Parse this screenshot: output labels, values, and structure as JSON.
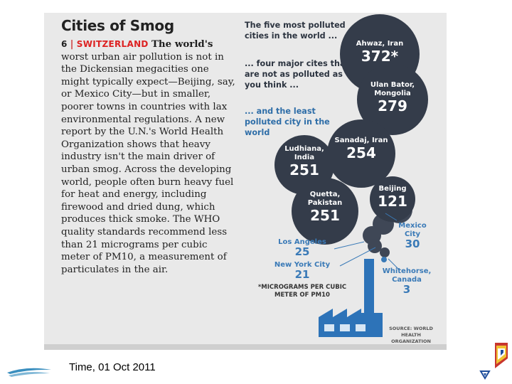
{
  "magazine": {
    "title": "Cities of Smog",
    "item_number": "6",
    "separator": "|",
    "country": "SWITZERLAND",
    "lead": "The world's",
    "body": "worst urban air pollution is not in the Dickensian megacities one might typically expect—Beijing, say, or Mexico City—but in smaller, poorer towns in countries with lax environmental regulations. A new report by the U.N.'s World Health Organization shows that heavy industry isn't the main driver of urban smog. Across the developing world, people often burn heavy fuel for heat and energy, including firewood and dried dung, which produces thick smoke. The WHO quality standards recommend less than 21 micrograms per cubic meter of PM10, a measurement of particulates in the air."
  },
  "legend": {
    "most_polluted": "The five most polluted cities in the world ...",
    "not_as_polluted": "... four major cites that are not as polluted as you think ...",
    "least_polluted": "... and the least polluted city in the world"
  },
  "cities": {
    "ahwaz": {
      "name": "Ahwaz, Iran",
      "value": "372*"
    },
    "ulan_bator": {
      "name": "Ulan Bator, Mongolia",
      "value": "279"
    },
    "sanandaj": {
      "name": "Sanadaj, Iran",
      "value": "254"
    },
    "ludhiana": {
      "name": "Ludhiana, India",
      "value": "251"
    },
    "quetta": {
      "name": "Quetta, Pakistan",
      "value": "251"
    },
    "beijing": {
      "name": "Beijing",
      "value": "121"
    },
    "mexico_city": {
      "name": "Mexico City",
      "value": "30"
    },
    "los_angeles": {
      "name": "Los Angeles",
      "value": "25"
    },
    "new_york": {
      "name": "New York City",
      "value": "21"
    },
    "whitehorse": {
      "name": "Whitehorse, Canada",
      "value": "3"
    }
  },
  "footnote": "*MICROGRAMS PER CUBIC METER OF PM10",
  "source": "SOURCE: WORLD HEALTH ORGANIZATION",
  "caption": "Time, 01 Oct 2011",
  "colors": {
    "bubble": "#343c4a",
    "highlight_red": "#d22222",
    "label_blue": "#3a7ab7",
    "factory_blue": "#2d73b8"
  }
}
